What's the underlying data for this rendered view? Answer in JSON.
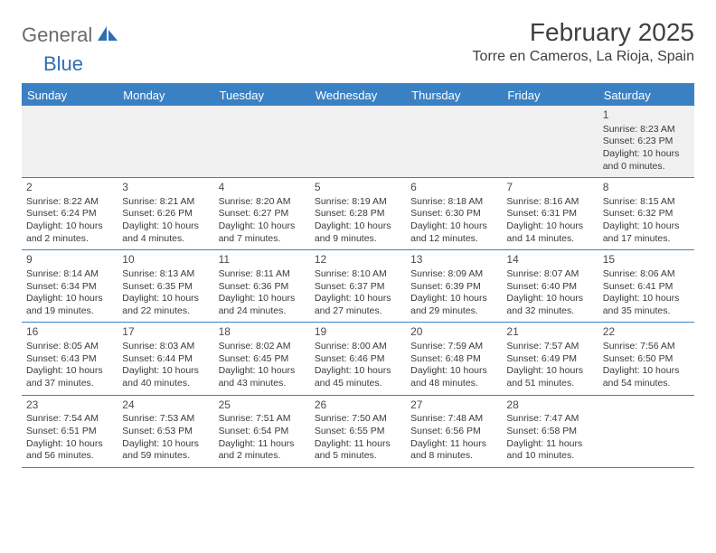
{
  "logo": {
    "part1": "General",
    "part2": "Blue"
  },
  "title": "February 2025",
  "location": "Torre en Cameros, La Rioja, Spain",
  "header_color": "#3a81c4",
  "day_names": [
    "Sunday",
    "Monday",
    "Tuesday",
    "Wednesday",
    "Thursday",
    "Friday",
    "Saturday"
  ],
  "weeks": [
    [
      {
        "n": "",
        "sr": "",
        "ss": "",
        "dl": ""
      },
      {
        "n": "",
        "sr": "",
        "ss": "",
        "dl": ""
      },
      {
        "n": "",
        "sr": "",
        "ss": "",
        "dl": ""
      },
      {
        "n": "",
        "sr": "",
        "ss": "",
        "dl": ""
      },
      {
        "n": "",
        "sr": "",
        "ss": "",
        "dl": ""
      },
      {
        "n": "",
        "sr": "",
        "ss": "",
        "dl": ""
      },
      {
        "n": "1",
        "sr": "Sunrise: 8:23 AM",
        "ss": "Sunset: 6:23 PM",
        "dl": "Daylight: 10 hours and 0 minutes."
      }
    ],
    [
      {
        "n": "2",
        "sr": "Sunrise: 8:22 AM",
        "ss": "Sunset: 6:24 PM",
        "dl": "Daylight: 10 hours and 2 minutes."
      },
      {
        "n": "3",
        "sr": "Sunrise: 8:21 AM",
        "ss": "Sunset: 6:26 PM",
        "dl": "Daylight: 10 hours and 4 minutes."
      },
      {
        "n": "4",
        "sr": "Sunrise: 8:20 AM",
        "ss": "Sunset: 6:27 PM",
        "dl": "Daylight: 10 hours and 7 minutes."
      },
      {
        "n": "5",
        "sr": "Sunrise: 8:19 AM",
        "ss": "Sunset: 6:28 PM",
        "dl": "Daylight: 10 hours and 9 minutes."
      },
      {
        "n": "6",
        "sr": "Sunrise: 8:18 AM",
        "ss": "Sunset: 6:30 PM",
        "dl": "Daylight: 10 hours and 12 minutes."
      },
      {
        "n": "7",
        "sr": "Sunrise: 8:16 AM",
        "ss": "Sunset: 6:31 PM",
        "dl": "Daylight: 10 hours and 14 minutes."
      },
      {
        "n": "8",
        "sr": "Sunrise: 8:15 AM",
        "ss": "Sunset: 6:32 PM",
        "dl": "Daylight: 10 hours and 17 minutes."
      }
    ],
    [
      {
        "n": "9",
        "sr": "Sunrise: 8:14 AM",
        "ss": "Sunset: 6:34 PM",
        "dl": "Daylight: 10 hours and 19 minutes."
      },
      {
        "n": "10",
        "sr": "Sunrise: 8:13 AM",
        "ss": "Sunset: 6:35 PM",
        "dl": "Daylight: 10 hours and 22 minutes."
      },
      {
        "n": "11",
        "sr": "Sunrise: 8:11 AM",
        "ss": "Sunset: 6:36 PM",
        "dl": "Daylight: 10 hours and 24 minutes."
      },
      {
        "n": "12",
        "sr": "Sunrise: 8:10 AM",
        "ss": "Sunset: 6:37 PM",
        "dl": "Daylight: 10 hours and 27 minutes."
      },
      {
        "n": "13",
        "sr": "Sunrise: 8:09 AM",
        "ss": "Sunset: 6:39 PM",
        "dl": "Daylight: 10 hours and 29 minutes."
      },
      {
        "n": "14",
        "sr": "Sunrise: 8:07 AM",
        "ss": "Sunset: 6:40 PM",
        "dl": "Daylight: 10 hours and 32 minutes."
      },
      {
        "n": "15",
        "sr": "Sunrise: 8:06 AM",
        "ss": "Sunset: 6:41 PM",
        "dl": "Daylight: 10 hours and 35 minutes."
      }
    ],
    [
      {
        "n": "16",
        "sr": "Sunrise: 8:05 AM",
        "ss": "Sunset: 6:43 PM",
        "dl": "Daylight: 10 hours and 37 minutes."
      },
      {
        "n": "17",
        "sr": "Sunrise: 8:03 AM",
        "ss": "Sunset: 6:44 PM",
        "dl": "Daylight: 10 hours and 40 minutes."
      },
      {
        "n": "18",
        "sr": "Sunrise: 8:02 AM",
        "ss": "Sunset: 6:45 PM",
        "dl": "Daylight: 10 hours and 43 minutes."
      },
      {
        "n": "19",
        "sr": "Sunrise: 8:00 AM",
        "ss": "Sunset: 6:46 PM",
        "dl": "Daylight: 10 hours and 45 minutes."
      },
      {
        "n": "20",
        "sr": "Sunrise: 7:59 AM",
        "ss": "Sunset: 6:48 PM",
        "dl": "Daylight: 10 hours and 48 minutes."
      },
      {
        "n": "21",
        "sr": "Sunrise: 7:57 AM",
        "ss": "Sunset: 6:49 PM",
        "dl": "Daylight: 10 hours and 51 minutes."
      },
      {
        "n": "22",
        "sr": "Sunrise: 7:56 AM",
        "ss": "Sunset: 6:50 PM",
        "dl": "Daylight: 10 hours and 54 minutes."
      }
    ],
    [
      {
        "n": "23",
        "sr": "Sunrise: 7:54 AM",
        "ss": "Sunset: 6:51 PM",
        "dl": "Daylight: 10 hours and 56 minutes."
      },
      {
        "n": "24",
        "sr": "Sunrise: 7:53 AM",
        "ss": "Sunset: 6:53 PM",
        "dl": "Daylight: 10 hours and 59 minutes."
      },
      {
        "n": "25",
        "sr": "Sunrise: 7:51 AM",
        "ss": "Sunset: 6:54 PM",
        "dl": "Daylight: 11 hours and 2 minutes."
      },
      {
        "n": "26",
        "sr": "Sunrise: 7:50 AM",
        "ss": "Sunset: 6:55 PM",
        "dl": "Daylight: 11 hours and 5 minutes."
      },
      {
        "n": "27",
        "sr": "Sunrise: 7:48 AM",
        "ss": "Sunset: 6:56 PM",
        "dl": "Daylight: 11 hours and 8 minutes."
      },
      {
        "n": "28",
        "sr": "Sunrise: 7:47 AM",
        "ss": "Sunset: 6:58 PM",
        "dl": "Daylight: 11 hours and 10 minutes."
      },
      {
        "n": "",
        "sr": "",
        "ss": "",
        "dl": ""
      }
    ]
  ]
}
